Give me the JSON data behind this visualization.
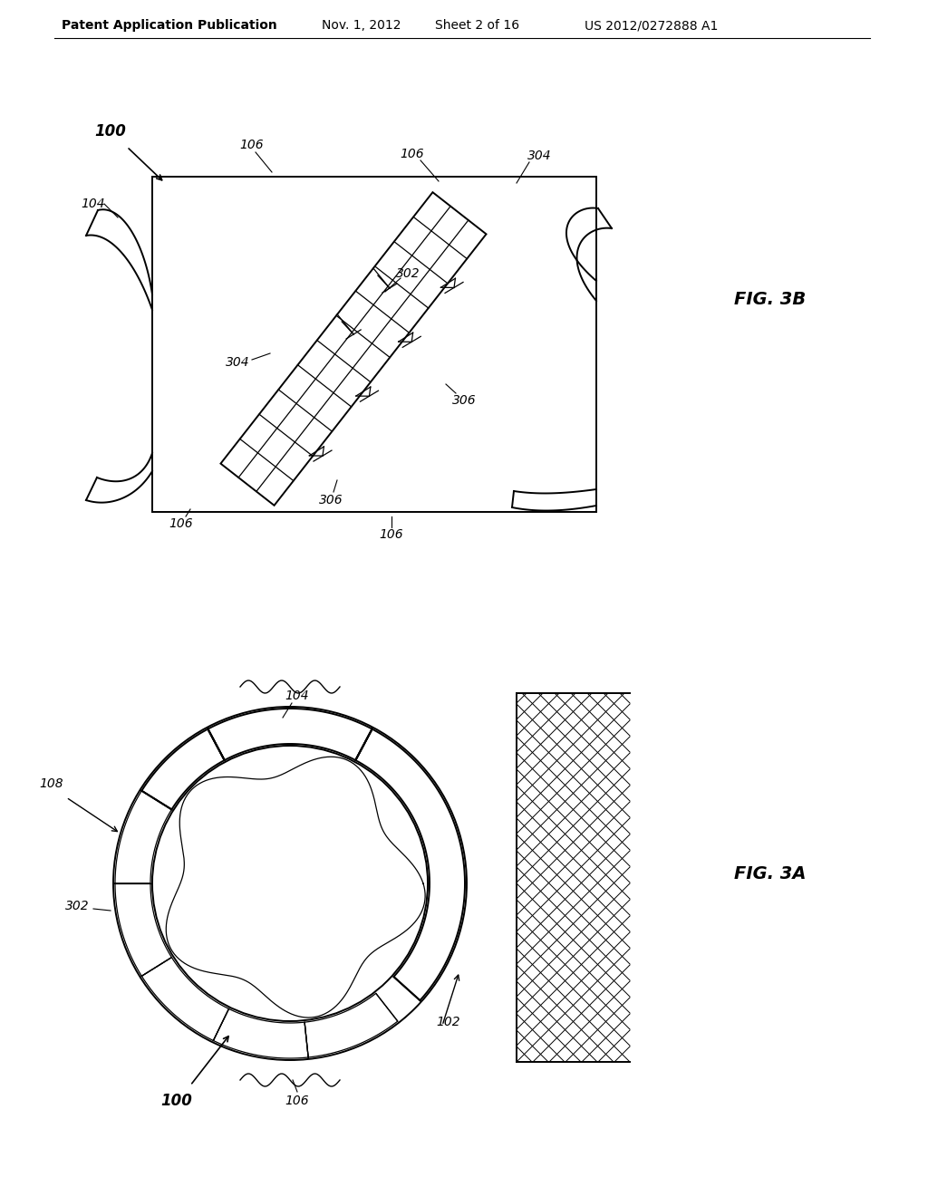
{
  "bg_color": "#ffffff",
  "header_text": "Patent Application Publication",
  "header_date": "Nov. 1, 2012",
  "header_sheet": "Sheet 2 of 16",
  "header_patent": "US 2012/0272888 A1",
  "fig3b_label": "FIG. 3B",
  "fig3a_label": "FIG. 3A"
}
